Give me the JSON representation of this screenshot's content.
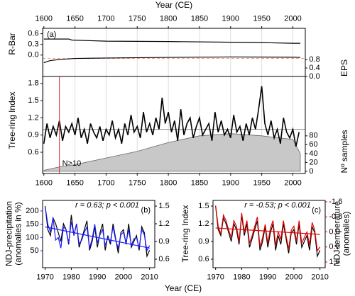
{
  "chart_data": [
    {
      "type": "line",
      "xlabel": "Year (CE)",
      "panel": "(a)",
      "ylabel": "R-Bar",
      "y2label": "EPS",
      "xlim": [
        1598,
        2020
      ],
      "xticks": [
        1600,
        1650,
        1700,
        1750,
        1800,
        1850,
        1900,
        1950,
        2000
      ],
      "grid": true,
      "ylim": [
        -0.6,
        0.75
      ],
      "yticks": [
        {
          "value": 0,
          "label": "0.0"
        },
        0.3,
        0.6
      ],
      "y2lim": [
        0,
        2.27
      ],
      "y2ticks": [
        {
          "value": 0,
          "label": "0.0"
        },
        0.4,
        0.8
      ],
      "threshold": {
        "value": 0.85,
        "axis": "y2",
        "color": "#f4a582"
      },
      "series": [
        {
          "name": "R-Bar",
          "axis": "y",
          "color": "#000000",
          "x": [
            1600,
            1640,
            1645,
            1700,
            1800,
            1900,
            1950,
            2000,
            2012
          ],
          "values": [
            0.45,
            0.45,
            0.42,
            0.39,
            0.38,
            0.36,
            0.35,
            0.33,
            0.33
          ]
        },
        {
          "name": "EPS",
          "axis": "y2",
          "color": "#000000",
          "x": [
            1600,
            1610,
            1625,
            1650,
            1700,
            1800,
            1900,
            2000,
            2012
          ],
          "values": [
            0.65,
            0.75,
            0.8,
            0.85,
            0.87,
            0.9,
            0.92,
            0.91,
            0.9
          ]
        }
      ]
    },
    {
      "type": "line",
      "ylabel": "Tree-ring Index",
      "y2label": "Nº samples",
      "xlim": [
        1598,
        2020
      ],
      "xticks": [
        1600,
        1650,
        1700,
        1750,
        1800,
        1850,
        1900,
        1950,
        2000
      ],
      "grid": true,
      "ylim": [
        0.23,
        1.92
      ],
      "yticks": [
        0.6,
        0.9,
        1.2,
        1.5,
        1.8
      ],
      "y2lim": [
        -5,
        214
      ],
      "y2ticks": [
        0,
        20,
        40,
        60,
        80
      ],
      "reference": 1.0,
      "marker": {
        "x": 1625,
        "label": "N>10",
        "color": "#d62728"
      },
      "series": [
        {
          "name": "Nº samples",
          "axis": "y2",
          "style": "area",
          "color": "#c8c8c8",
          "x": [
            1600,
            1625,
            1650,
            1700,
            1750,
            1800,
            1850,
            1900,
            1950,
            2000,
            2012
          ],
          "values": [
            2,
            10,
            15,
            30,
            45,
            65,
            80,
            85,
            80,
            72,
            40
          ]
        },
        {
          "name": "Tree-ring Index",
          "axis": "y",
          "color": "#000000",
          "width": 1.6,
          "x": [
            1600,
            1605,
            1610,
            1615,
            1620,
            1625,
            1630,
            1635,
            1640,
            1645,
            1650,
            1655,
            1660,
            1665,
            1670,
            1675,
            1680,
            1685,
            1690,
            1695,
            1700,
            1705,
            1710,
            1715,
            1720,
            1725,
            1730,
            1735,
            1740,
            1745,
            1750,
            1755,
            1760,
            1765,
            1770,
            1775,
            1780,
            1785,
            1790,
            1795,
            1800,
            1805,
            1810,
            1815,
            1820,
            1825,
            1830,
            1835,
            1840,
            1845,
            1850,
            1855,
            1860,
            1865,
            1870,
            1875,
            1880,
            1885,
            1890,
            1895,
            1900,
            1905,
            1910,
            1915,
            1920,
            1925,
            1930,
            1935,
            1940,
            1945,
            1950,
            1955,
            1960,
            1965,
            1970,
            1975,
            1980,
            1985,
            1990,
            1995,
            2000,
            2005,
            2010
          ],
          "values": [
            0.75,
            1.1,
            0.85,
            1.05,
            0.9,
            1.15,
            0.8,
            1.05,
            0.95,
            1.1,
            0.9,
            1.2,
            0.85,
            1.0,
            0.75,
            1.1,
            0.95,
            0.85,
            1.05,
            0.8,
            1.0,
            0.9,
            1.15,
            0.85,
            1.0,
            0.75,
            1.1,
            0.9,
            1.25,
            0.95,
            1.05,
            0.85,
            1.3,
            0.95,
            1.1,
            0.9,
            1.2,
            1.0,
            1.55,
            1.1,
            1.3,
            0.95,
            1.15,
            0.8,
            1.35,
            0.9,
            1.1,
            1.2,
            0.85,
            1.05,
            1.2,
            0.9,
            1.0,
            1.1,
            0.8,
            1.3,
            0.95,
            1.15,
            0.9,
            1.0,
            0.85,
            1.25,
            0.95,
            1.05,
            0.8,
            1.1,
            0.9,
            1.2,
            1.0,
            1.35,
            1.75,
            1.1,
            0.9,
            1.15,
            0.85,
            1.0,
            0.75,
            1.2,
            0.95,
            0.85,
            1.0,
            0.7,
            0.95
          ]
        }
      ]
    },
    {
      "type": "line",
      "panel": "(b)",
      "annotation": "r = 0.63; p < 0.001",
      "xlabel": "Year (CE)",
      "ylabel": [
        "NDJ-precipitation",
        "(anomalies in %)"
      ],
      "ycolor": "#1a1aff",
      "y2label": "Tree-ring Index",
      "xlim": [
        1969,
        2012
      ],
      "xticks": [
        1970,
        1980,
        1990,
        2000,
        2010
      ],
      "ylim": [
        -14,
        240
      ],
      "yticks": [
        50,
        100,
        150,
        200
      ],
      "y2lim": [
        0.456,
        1.596
      ],
      "y2ticks": [
        0.6,
        0.9,
        1.2,
        1.5
      ],
      "x": [
        1970,
        1971,
        1972,
        1973,
        1974,
        1975,
        1976,
        1977,
        1978,
        1979,
        1980,
        1981,
        1982,
        1983,
        1984,
        1985,
        1986,
        1987,
        1988,
        1989,
        1990,
        1991,
        1992,
        1993,
        1994,
        1995,
        1996,
        1997,
        1998,
        1999,
        2000,
        2001,
        2002,
        2003,
        2004,
        2005,
        2006,
        2007,
        2008,
        2009,
        2010
      ],
      "series": [
        {
          "name": "Tree-ring Index",
          "axis": "y2",
          "color": "#000000",
          "values": [
            1.5,
            1.1,
            1.0,
            1.3,
            1.2,
            1.05,
            0.9,
            1.2,
            1.1,
            0.85,
            1.35,
            1.0,
            1.2,
            0.8,
            0.95,
            1.1,
            1.25,
            0.75,
            0.9,
            1.15,
            0.8,
            1.05,
            1.2,
            0.75,
            1.0,
            0.85,
            1.2,
            0.95,
            0.7,
            1.05,
            1.1,
            0.85,
            1.2,
            0.8,
            0.9,
            1.0,
            0.75,
            1.15,
            1.05,
            0.65,
            0.75
          ]
        },
        {
          "name": "NDJ-precipitation",
          "axis": "y",
          "color": "#1a1aff",
          "values": [
            215,
            150,
            120,
            175,
            90,
            100,
            60,
            140,
            130,
            80,
            160,
            110,
            150,
            75,
            90,
            120,
            140,
            60,
            95,
            150,
            80,
            110,
            130,
            70,
            100,
            85,
            140,
            90,
            60,
            110,
            120,
            80,
            130,
            70,
            95,
            100,
            60,
            130,
            110,
            50,
            70
          ]
        },
        {
          "name": "trend",
          "axis": "y",
          "color": "#1a1aff",
          "x": [
            1970,
            2010
          ],
          "values": [
            140,
            60
          ]
        }
      ]
    },
    {
      "type": "line",
      "panel": "(c)",
      "annotation": "r = -0.53; p < 0.001",
      "y2label": [
        "NDJ-temperature",
        "(anomalies)"
      ],
      "y2color": "#e00000",
      "xlim": [
        1969,
        2012
      ],
      "xticks": [
        1970,
        1980,
        1990,
        2000,
        2010
      ],
      "ylim": [
        0.456,
        1.596
      ],
      "yticks": [
        0.6,
        0.9,
        1.2,
        1.5
      ],
      "y2lim": [
        1.9,
        -1.675
      ],
      "y2ticks": [
        -1.6,
        -0.8,
        {
          "value": 0,
          "label": "0.0"
        },
        0.8,
        1.6
      ],
      "x": [
        1970,
        1971,
        1972,
        1973,
        1974,
        1975,
        1976,
        1977,
        1978,
        1979,
        1980,
        1981,
        1982,
        1983,
        1984,
        1985,
        1986,
        1987,
        1988,
        1989,
        1990,
        1991,
        1992,
        1993,
        1994,
        1995,
        1996,
        1997,
        1998,
        1999,
        2000,
        2001,
        2002,
        2003,
        2004,
        2005,
        2006,
        2007,
        2008,
        2009,
        2010
      ],
      "series": [
        {
          "name": "Tree-ring Index",
          "axis": "y",
          "color": "#000000",
          "values": [
            1.5,
            1.1,
            1.0,
            1.3,
            1.2,
            1.05,
            0.9,
            1.2,
            1.1,
            0.85,
            1.35,
            1.0,
            1.2,
            0.8,
            0.95,
            1.1,
            1.25,
            0.75,
            0.9,
            1.15,
            0.8,
            1.05,
            1.2,
            0.75,
            1.0,
            0.85,
            1.2,
            0.95,
            0.7,
            1.05,
            1.1,
            0.85,
            1.2,
            0.8,
            0.9,
            1.0,
            0.75,
            1.15,
            1.05,
            0.65,
            0.75
          ]
        },
        {
          "name": "NDJ-temperature",
          "axis": "y2",
          "color": "#e00000",
          "values": [
            -1.4,
            -0.3,
            0.1,
            -0.9,
            -0.6,
            -0.1,
            0.3,
            -0.6,
            -0.3,
            0.5,
            -1.0,
            0.0,
            -0.6,
            0.6,
            0.2,
            -0.3,
            -0.8,
            0.8,
            0.3,
            -0.4,
            0.6,
            -0.2,
            -0.6,
            0.7,
            0.0,
            0.4,
            -0.6,
            0.2,
            0.9,
            -0.1,
            -0.3,
            0.5,
            -0.6,
            0.6,
            0.3,
            0.0,
            0.7,
            -0.5,
            -0.1,
            1.0,
            0.8
          ]
        },
        {
          "name": "trend",
          "axis": "y2",
          "color": "#e00000",
          "x": [
            1970,
            2010
          ],
          "values": [
            -0.21,
            0.13
          ]
        }
      ]
    }
  ]
}
